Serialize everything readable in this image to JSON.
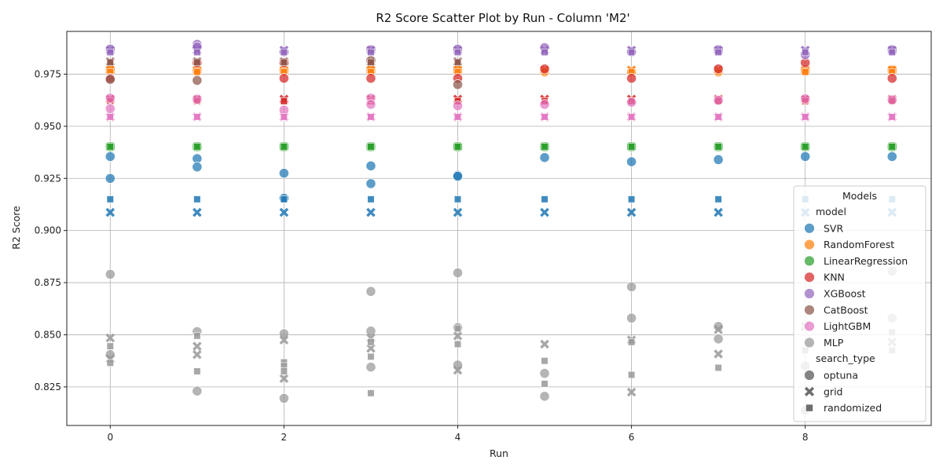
{
  "chart_data": {
    "type": "scatter",
    "title": "R2 Score Scatter Plot by Run - Column 'M2'",
    "xlabel": "Run",
    "ylabel": "R2 Score",
    "xlim": [
      -0.5,
      9.45
    ],
    "ylim": [
      0.8065,
      0.9955
    ],
    "xticks": [
      0,
      2,
      4,
      6,
      8
    ],
    "yticks": [
      0.825,
      0.85,
      0.875,
      0.9,
      0.925,
      0.95,
      0.975
    ],
    "grid": true,
    "legend": {
      "title": "Models",
      "placement": "lower-right",
      "hue_header": "model",
      "style_header": "search_type",
      "models": [
        {
          "name": "SVR",
          "color": "#1f77b4"
        },
        {
          "name": "RandomForest",
          "color": "#ff7f0e"
        },
        {
          "name": "LinearRegression",
          "color": "#2ca02c"
        },
        {
          "name": "KNN",
          "color": "#d62728"
        },
        {
          "name": "XGBoost",
          "color": "#9467bd"
        },
        {
          "name": "CatBoost",
          "color": "#8c564b"
        },
        {
          "name": "LightGBM",
          "color": "#e377c2"
        },
        {
          "name": "MLP",
          "color": "#999999"
        }
      ],
      "search_types": [
        {
          "name": "optuna",
          "marker": "circle"
        },
        {
          "name": "grid",
          "marker": "x"
        },
        {
          "name": "randomized",
          "marker": "square"
        }
      ]
    },
    "series": [
      {
        "model": "SVR",
        "search_type": "optuna",
        "x": [
          0,
          0,
          1,
          1,
          2,
          2,
          3,
          3,
          4,
          4,
          5,
          6,
          7,
          8,
          9
        ],
        "y": [
          0.9355,
          0.925,
          0.9345,
          0.9305,
          0.9275,
          0.9155,
          0.931,
          0.9225,
          0.9265,
          0.926,
          0.935,
          0.933,
          0.934,
          0.9355,
          0.9355
        ]
      },
      {
        "model": "SVR",
        "search_type": "grid",
        "x": [
          0,
          1,
          2,
          3,
          4,
          5,
          6,
          7,
          8,
          9
        ],
        "y": [
          0.9087,
          0.9087,
          0.9087,
          0.9087,
          0.9087,
          0.9087,
          0.9087,
          0.9087,
          0.9087,
          0.9087
        ]
      },
      {
        "model": "SVR",
        "search_type": "randomized",
        "x": [
          0,
          1,
          2,
          3,
          4,
          5,
          6,
          7,
          8,
          9
        ],
        "y": [
          0.915,
          0.915,
          0.915,
          0.915,
          0.915,
          0.915,
          0.915,
          0.915,
          0.915,
          0.915
        ]
      },
      {
        "model": "RandomForest",
        "search_type": "optuna",
        "x": [
          0,
          1,
          2,
          3,
          4,
          5,
          6,
          7,
          8,
          9
        ],
        "y": [
          0.977,
          0.977,
          0.977,
          0.977,
          0.977,
          0.976,
          0.976,
          0.976,
          0.977,
          0.977
        ]
      },
      {
        "model": "RandomForest",
        "search_type": "grid",
        "x": [
          0,
          1,
          2,
          3,
          4,
          5,
          6,
          7,
          8,
          9
        ],
        "y": [
          0.977,
          0.977,
          0.977,
          0.977,
          0.977,
          0.977,
          0.977,
          0.977,
          0.977,
          0.977
        ]
      },
      {
        "model": "RandomForest",
        "search_type": "randomized",
        "x": [
          0,
          1,
          2,
          3,
          4,
          5,
          6,
          7,
          8,
          9
        ],
        "y": [
          0.976,
          0.976,
          0.976,
          0.976,
          0.976,
          0.976,
          0.976,
          0.976,
          0.976,
          0.976
        ]
      },
      {
        "model": "LinearRegression",
        "search_type": "optuna",
        "x": [
          0,
          1,
          2,
          3,
          4,
          5,
          6,
          7,
          8,
          9
        ],
        "y": [
          0.9402,
          0.9402,
          0.9402,
          0.9402,
          0.9402,
          0.9402,
          0.9402,
          0.9402,
          0.9402,
          0.9402
        ]
      },
      {
        "model": "LinearRegression",
        "search_type": "grid",
        "x": [
          0,
          1,
          2,
          3,
          4,
          5,
          6,
          7,
          8,
          9
        ],
        "y": [
          0.9402,
          0.9402,
          0.9402,
          0.9402,
          0.9402,
          0.9402,
          0.9402,
          0.9402,
          0.9402,
          0.9402
        ]
      },
      {
        "model": "LinearRegression",
        "search_type": "randomized",
        "x": [
          0,
          1,
          2,
          3,
          4,
          5,
          6,
          7,
          8,
          9
        ],
        "y": [
          0.9402,
          0.9402,
          0.9402,
          0.9402,
          0.9402,
          0.9402,
          0.9402,
          0.9402,
          0.9402,
          0.9402
        ]
      },
      {
        "model": "KNN",
        "search_type": "optuna",
        "x": [
          0,
          1,
          2,
          2,
          3,
          4,
          5,
          6,
          7,
          8,
          9
        ],
        "y": [
          0.973,
          0.9805,
          0.9805,
          0.973,
          0.973,
          0.973,
          0.9775,
          0.973,
          0.9775,
          0.9805,
          0.973
        ]
      },
      {
        "model": "KNN",
        "search_type": "grid",
        "x": [
          0,
          1,
          2,
          3,
          4,
          5,
          6,
          7,
          8,
          9
        ],
        "y": [
          0.963,
          0.963,
          0.963,
          0.963,
          0.963,
          0.963,
          0.963,
          0.963,
          0.963,
          0.963
        ]
      },
      {
        "model": "KNN",
        "search_type": "randomized",
        "x": [
          0,
          1,
          2,
          3,
          4,
          5,
          6,
          7,
          8,
          9
        ],
        "y": [
          0.962,
          0.962,
          0.962,
          0.962,
          0.962,
          0.962,
          0.962,
          0.962,
          0.962,
          0.962
        ]
      },
      {
        "model": "XGBoost",
        "search_type": "optuna",
        "x": [
          0,
          1,
          1,
          2,
          3,
          4,
          5,
          6,
          7,
          8,
          9
        ],
        "y": [
          0.987,
          0.9893,
          0.988,
          0.9857,
          0.9867,
          0.987,
          0.9877,
          0.9857,
          0.9867,
          0.9843,
          0.9867
        ]
      },
      {
        "model": "XGBoost",
        "search_type": "grid",
        "x": [
          0,
          1,
          2,
          3,
          4,
          5,
          6,
          7,
          8,
          9
        ],
        "y": [
          0.9865,
          0.9865,
          0.9865,
          0.9865,
          0.9865,
          0.9865,
          0.9865,
          0.9865,
          0.9865,
          0.9865
        ]
      },
      {
        "model": "XGBoost",
        "search_type": "randomized",
        "x": [
          0,
          1,
          2,
          3,
          4,
          5,
          6,
          7,
          8,
          9
        ],
        "y": [
          0.9855,
          0.9855,
          0.9855,
          0.9855,
          0.9855,
          0.9855,
          0.9855,
          0.9855,
          0.9855,
          0.9855
        ]
      },
      {
        "model": "CatBoost",
        "search_type": "optuna",
        "x": [
          0,
          1,
          3,
          4
        ],
        "y": [
          0.9725,
          0.972,
          0.9815,
          0.97
        ]
      },
      {
        "model": "CatBoost",
        "search_type": "grid",
        "x": [
          0,
          1,
          2,
          3,
          4
        ],
        "y": [
          0.981,
          0.981,
          0.981,
          0.981,
          0.981
        ]
      },
      {
        "model": "CatBoost",
        "search_type": "randomized",
        "x": [
          0,
          1,
          2,
          3,
          4
        ],
        "y": [
          0.9807,
          0.9807,
          0.9807,
          0.9807,
          0.9807
        ]
      },
      {
        "model": "LightGBM",
        "search_type": "optuna",
        "x": [
          0,
          0,
          1,
          2,
          3,
          3,
          4,
          5,
          6,
          7,
          8,
          9
        ],
        "y": [
          0.9635,
          0.9585,
          0.963,
          0.9578,
          0.9635,
          0.9605,
          0.9598,
          0.9605,
          0.9615,
          0.9625,
          0.9632,
          0.9627
        ]
      },
      {
        "model": "LightGBM",
        "search_type": "grid",
        "x": [
          0,
          1,
          2,
          3,
          4,
          5,
          6,
          7,
          8,
          9
        ],
        "y": [
          0.9545,
          0.9545,
          0.9545,
          0.9545,
          0.9545,
          0.9545,
          0.9545,
          0.9545,
          0.9545,
          0.9545
        ]
      },
      {
        "model": "LightGBM",
        "search_type": "randomized",
        "x": [
          0,
          1,
          2,
          3,
          4,
          5,
          6,
          7,
          8,
          9
        ],
        "y": [
          0.9545,
          0.9545,
          0.9545,
          0.9545,
          0.9545,
          0.9545,
          0.9545,
          0.9545,
          0.9545,
          0.9545
        ]
      },
      {
        "model": "MLP",
        "search_type": "optuna",
        "x": [
          0,
          0,
          1,
          1,
          2,
          2,
          3,
          3,
          3,
          4,
          4,
          4,
          5,
          5,
          6,
          6,
          7,
          7,
          8,
          8,
          9,
          9
        ],
        "y": [
          0.879,
          0.8405,
          0.8515,
          0.823,
          0.8505,
          0.8195,
          0.8708,
          0.8518,
          0.8345,
          0.8797,
          0.8535,
          0.8355,
          0.8315,
          0.8205,
          0.873,
          0.858,
          0.854,
          0.848,
          0.835,
          0.8138,
          0.8805,
          0.858
        ]
      },
      {
        "model": "MLP",
        "search_type": "grid",
        "x": [
          0,
          0,
          1,
          1,
          2,
          2,
          3,
          3,
          4,
          4,
          5,
          6,
          6,
          7,
          7,
          8,
          9
        ],
        "y": [
          0.8485,
          0.8385,
          0.8445,
          0.8405,
          0.8475,
          0.829,
          0.8485,
          0.8435,
          0.8495,
          0.833,
          0.8455,
          0.8475,
          0.8225,
          0.8525,
          0.8408,
          0.854,
          0.8465
        ]
      },
      {
        "model": "MLP",
        "search_type": "randomized",
        "x": [
          0,
          0,
          1,
          1,
          2,
          2,
          2,
          3,
          3,
          3,
          4,
          4,
          5,
          5,
          6,
          6,
          7,
          8,
          9,
          9
        ],
        "y": [
          0.8445,
          0.8365,
          0.8495,
          0.8325,
          0.8368,
          0.835,
          0.8325,
          0.8465,
          0.8395,
          0.822,
          0.8455,
          0.853,
          0.8375,
          0.8265,
          0.8465,
          0.8308,
          0.8342,
          0.8425,
          0.8512,
          0.8425
        ]
      }
    ]
  }
}
